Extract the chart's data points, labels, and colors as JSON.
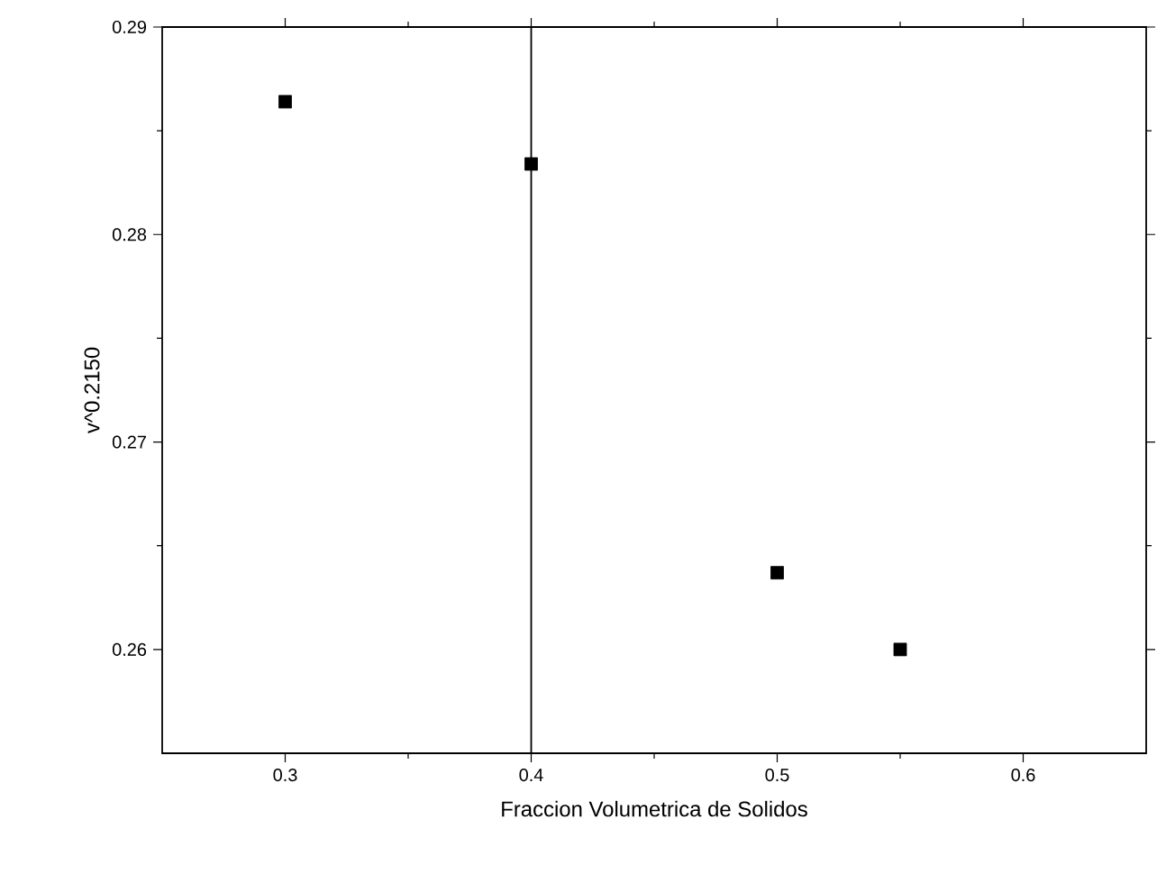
{
  "chart_data": {
    "type": "scatter",
    "xlabel": "Fraccion Volumetrica de Solidos",
    "ylabel": "v^0.2150",
    "x": [
      0.3,
      0.4,
      0.5,
      0.55
    ],
    "values": [
      0.2864,
      0.2834,
      0.2637,
      0.26
    ],
    "color": "#000000",
    "marker": "square",
    "xlim": [
      0.25,
      0.65
    ],
    "xticks": [
      0.3,
      0.4,
      0.5,
      0.6
    ],
    "ylim": [
      0.255,
      0.29
    ],
    "yticks": [
      0.26,
      0.27,
      0.28,
      0.29
    ],
    "ref_lines": [
      {
        "axis": "x",
        "value": 0.4,
        "color": "#000000",
        "line_style": "solid"
      }
    ],
    "grid": false
  }
}
